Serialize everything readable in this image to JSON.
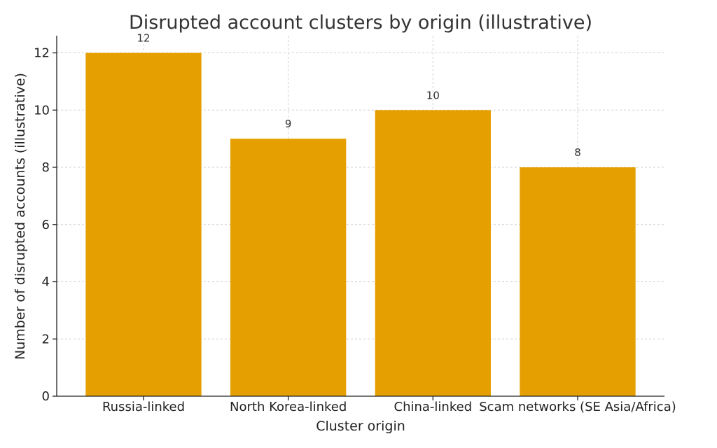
{
  "chart_data": {
    "type": "bar",
    "title": "Disrupted account clusters by origin (illustrative)",
    "xlabel": "Cluster origin",
    "ylabel": "Number of disrupted accounts (illustrative)",
    "categories": [
      "Russia-linked",
      "North Korea-linked",
      "China-linked",
      "Scam networks (SE Asia/Africa)"
    ],
    "values": [
      12,
      9,
      10,
      8
    ],
    "ylim": [
      0,
      12.6
    ],
    "yticks": [
      0,
      2,
      4,
      6,
      8,
      10,
      12
    ],
    "grid": true,
    "bar_color": "#E69F00",
    "data_labels": [
      "12",
      "9",
      "10",
      "8"
    ]
  }
}
